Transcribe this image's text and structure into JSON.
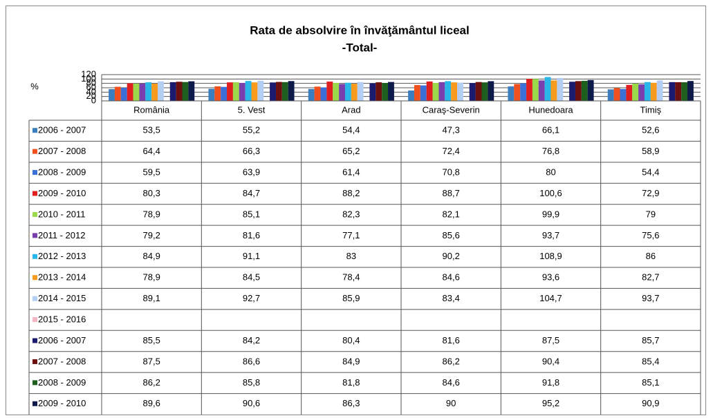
{
  "chart_data": {
    "type": "bar",
    "title": "Rata de absolvire în învăţământul liceal",
    "subtitle": "-Total-",
    "y_label": "%",
    "categories": [
      "România",
      "5. Vest",
      "Arad",
      "Caraş-Severin",
      "Hunedoara",
      "Timiş"
    ],
    "ylim": [
      0,
      120
    ],
    "yticks": [
      0,
      20,
      40,
      60,
      80,
      100,
      120
    ],
    "grid": true,
    "series": [
      {
        "name": "2006 - 2007",
        "color": "#3a7ebf",
        "values": [
          53.5,
          55.2,
          54.4,
          47.3,
          66.1,
          52.6
        ],
        "value_labels": [
          "53,5",
          "55,2",
          "54,4",
          "47,3",
          "66,1",
          "52,6"
        ]
      },
      {
        "name": "2007 - 2008",
        "color": "#f0501e",
        "values": [
          64.4,
          66.3,
          65.2,
          72.4,
          76.8,
          58.9
        ],
        "value_labels": [
          "64,4",
          "66,3",
          "65,2",
          "72,4",
          "76,8",
          "58,9"
        ]
      },
      {
        "name": "2008 - 2009",
        "color": "#3b70d8",
        "values": [
          59.5,
          63.9,
          61.4,
          70.8,
          80,
          54.4
        ],
        "value_labels": [
          "59,5",
          "63,9",
          "61,4",
          "70,8",
          "80",
          "54,4"
        ]
      },
      {
        "name": "2009 - 2010",
        "color": "#e02020",
        "values": [
          80.3,
          84.7,
          88.2,
          88.7,
          100.6,
          72.9
        ],
        "value_labels": [
          "80,3",
          "84,7",
          "88,2",
          "88,7",
          "100,6",
          "72,9"
        ]
      },
      {
        "name": "2010 - 2011",
        "color": "#9bd84a",
        "values": [
          78.9,
          85.1,
          82.3,
          82.1,
          99.9,
          79
        ],
        "value_labels": [
          "78,9",
          "85,1",
          "82,3",
          "82,1",
          "99,9",
          "79"
        ]
      },
      {
        "name": "2011 - 2012",
        "color": "#7a3faf",
        "values": [
          79.2,
          81.6,
          77.1,
          85.6,
          93.7,
          75.6
        ],
        "value_labels": [
          "79,2",
          "81,6",
          "77,1",
          "85,6",
          "93,7",
          "75,6"
        ]
      },
      {
        "name": "2012 - 2013",
        "color": "#29b6e8",
        "values": [
          84.9,
          91.1,
          83,
          90.2,
          108.9,
          86
        ],
        "value_labels": [
          "84,9",
          "91,1",
          "83",
          "90,2",
          "108,9",
          "86"
        ]
      },
      {
        "name": "2013 - 2014",
        "color": "#f79a1e",
        "values": [
          78.9,
          84.5,
          78.4,
          84.6,
          93.6,
          82.7
        ],
        "value_labels": [
          "78,9",
          "84,5",
          "78,4",
          "84,6",
          "93,6",
          "82,7"
        ]
      },
      {
        "name": "2014 - 2015",
        "color": "#b4cdf2",
        "values": [
          89.1,
          92.7,
          85.9,
          83.4,
          104.7,
          93.7
        ],
        "value_labels": [
          "89,1",
          "92,7",
          "85,9",
          "83,4",
          "104,7",
          "93,7"
        ]
      },
      {
        "name": "2015 - 2016",
        "color": "#f4b6c2",
        "values": [
          null,
          null,
          null,
          null,
          null,
          null
        ]
      },
      {
        "name": "2006 - 2007",
        "color": "#1a1a6e",
        "values": [
          85.5,
          84.2,
          80.4,
          81.6,
          87.5,
          85.7
        ],
        "value_labels": [
          "85,5",
          "84,2",
          "80,4",
          "81,6",
          "87,5",
          "85,7"
        ]
      },
      {
        "name": "2007 - 2008",
        "color": "#6b0f0f",
        "values": [
          87.5,
          86.6,
          84.9,
          86.2,
          90.4,
          85.4
        ],
        "value_labels": [
          "87,5",
          "86,6",
          "84,9",
          "86,2",
          "90,4",
          "85,4"
        ]
      },
      {
        "name": "2008 - 2009",
        "color": "#1e5e1e",
        "values": [
          86.2,
          85.8,
          81.8,
          84.6,
          91.8,
          85.1
        ],
        "value_labels": [
          "86,2",
          "85,8",
          "81,8",
          "84,6",
          "91,8",
          "85,1"
        ]
      },
      {
        "name": "2009 - 2010",
        "color": "#0e1a4a",
        "values": [
          89.6,
          90.6,
          86.3,
          90,
          95.2,
          90.9
        ],
        "value_labels": [
          "89,6",
          "90,6",
          "86,3",
          "90",
          "95,2",
          "90,9"
        ]
      }
    ]
  }
}
